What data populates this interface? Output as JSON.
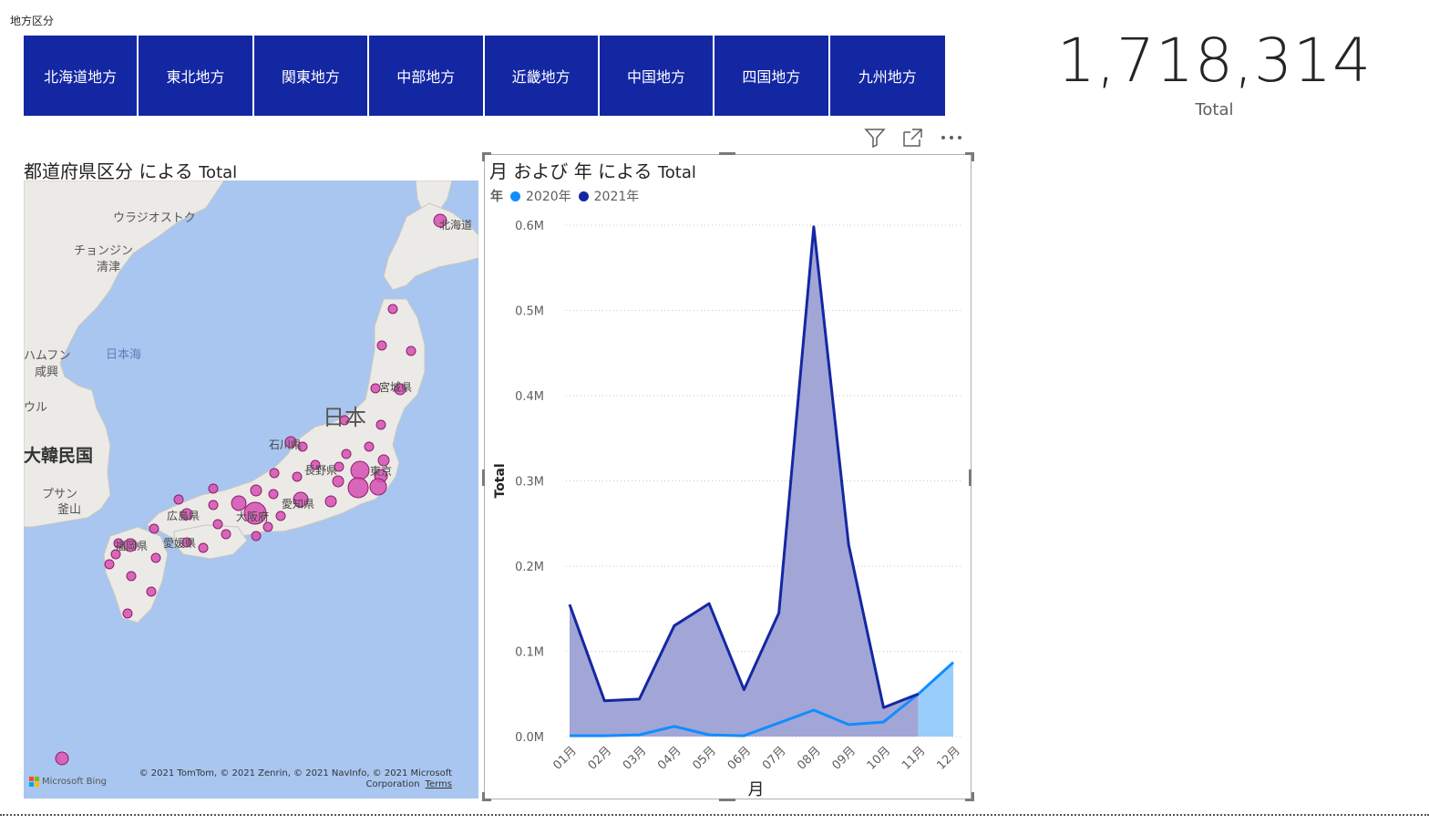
{
  "slicer": {
    "title": "地方区分",
    "items": [
      "北海道地方",
      "東北地方",
      "関東地方",
      "中部地方",
      "近畿地方",
      "中国地方",
      "四国地方",
      "九州地方"
    ],
    "color": "#1427a3"
  },
  "card": {
    "value": "1,718,314",
    "label": "Total"
  },
  "visual_header": {
    "icons": [
      "filter-icon",
      "focus-mode-icon",
      "more-options-icon"
    ]
  },
  "map": {
    "title_prefix": "都道府県区分 による ",
    "title_measure": "Total",
    "labels": {
      "vladivostok": "ウラジオストク",
      "chongjin": "チョンジン",
      "chongjin_kanji": "清津",
      "hamhung": "ハムフン",
      "hamhung_kanji": "咸興",
      "seoul": "ウル",
      "busan": "プサン",
      "busan_kanji": "釜山",
      "sea_of_japan": "日本海",
      "korea": "大韓民国",
      "japan": "日本",
      "hokkaido": "北海道",
      "miyagi": "宮城県",
      "ishikawa": "石川県",
      "nagano": "長野県",
      "tokyo": "東京",
      "aichi": "愛知県",
      "osaka": "大阪府",
      "hiroshima": "広島県",
      "ehime": "愛媛県",
      "fukuoka": "福岡県"
    },
    "attribution": "© 2021 TomTom, © 2021 Zenrin, © 2021 NavInfo, © 2021 Microsoft Corporation",
    "terms": "Terms",
    "provider": "Microsoft Bing",
    "bubble_color": "#d64fb1"
  },
  "chart_data": {
    "type": "area",
    "title_prefix": "月 および 年 による ",
    "title_measure": "Total",
    "legend_title": "年",
    "categories": [
      "01月",
      "02月",
      "03月",
      "04月",
      "05月",
      "06月",
      "07月",
      "08月",
      "09月",
      "10月",
      "11月",
      "12月"
    ],
    "series": [
      {
        "name": "2020年",
        "color": "#118dff",
        "fill": "#99cdfb",
        "values": [
          null,
          null,
          null,
          null,
          null,
          null,
          null,
          null,
          null,
          null,
          0.05,
          0.087
        ],
        "line_values": [
          0.001,
          0.001,
          0.002,
          0.012,
          0.002,
          0.001,
          0.016,
          0.031,
          0.014,
          0.017,
          0.05,
          0.087
        ]
      },
      {
        "name": "2021年",
        "color": "#1427a3",
        "fill": "#a1a6d6",
        "values": [
          0.155,
          0.042,
          0.044,
          0.13,
          0.156,
          0.055,
          0.145,
          0.598,
          0.225,
          0.034,
          0.05,
          null
        ]
      }
    ],
    "y_ticks": [
      "0.0M",
      "0.1M",
      "0.2M",
      "0.3M",
      "0.4M",
      "0.5M",
      "0.6M"
    ],
    "ylim": [
      0,
      0.6
    ],
    "xlabel": "月",
    "ylabel": "Total",
    "grid": true,
    "legend_position": "top-left"
  }
}
